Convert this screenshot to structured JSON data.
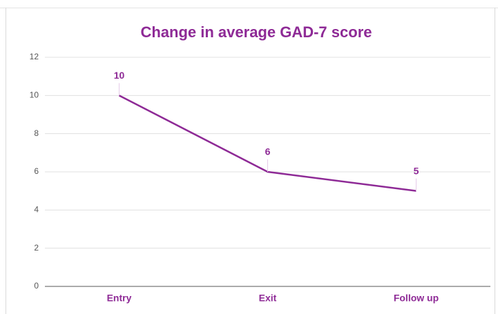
{
  "chart_data": {
    "type": "line",
    "title": "Change in average GAD-7 score",
    "categories": [
      "Entry",
      "Exit",
      "Follow up"
    ],
    "values": [
      10,
      6,
      5
    ],
    "color": "#8e2a96",
    "ylim": [
      0,
      12
    ],
    "yticks": [
      0,
      2,
      4,
      6,
      8,
      10,
      12
    ],
    "grid": true
  }
}
